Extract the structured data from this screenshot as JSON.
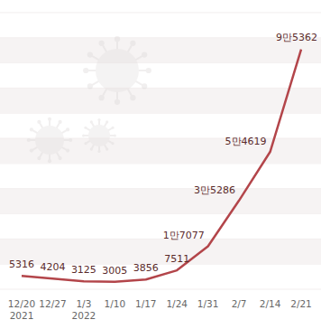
{
  "chart_data": {
    "type": "line",
    "categories": [
      "12/20\n2021",
      "12/27",
      "1/3\n2022",
      "1/10",
      "1/17",
      "1/24",
      "1/31",
      "2/7",
      "2/14",
      "2/21"
    ],
    "values": [
      5316,
      4204,
      3125,
      3005,
      3856,
      7511,
      17077,
      35286,
      54619,
      95362
    ],
    "value_labels": [
      "5316",
      "4204",
      "3125",
      "3005",
      "3856",
      "7511",
      "1만7077",
      "3만5286",
      "5만4619",
      "9만5362"
    ],
    "color": "#b3454a",
    "ylim": [
      0,
      115000
    ],
    "yticks": [
      0,
      10000,
      20000,
      30000,
      40000,
      50000,
      60000,
      70000,
      80000,
      90000,
      100000,
      110000
    ],
    "grid": true,
    "data_labels": true,
    "tick_labels": "x"
  }
}
